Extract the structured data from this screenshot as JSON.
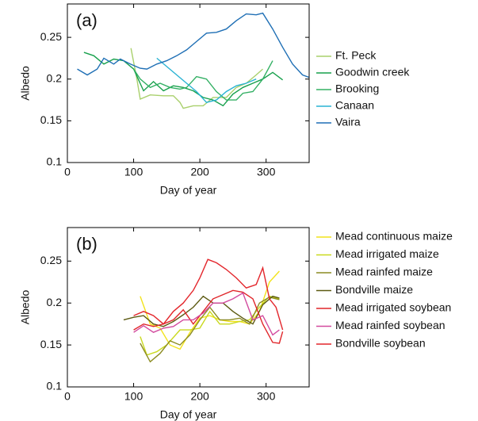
{
  "chart_data": [
    {
      "type": "line",
      "annotation": "(a)",
      "x_label": "Day of year",
      "y_label": "Albedo",
      "xlim": [
        0,
        365
      ],
      "ylim": [
        0.1,
        0.29
      ],
      "xticks": [
        0,
        100,
        200,
        300
      ],
      "yticks": [
        0.1,
        0.15,
        0.2,
        0.25
      ],
      "legend": "outside-right",
      "series": [
        {
          "name": "Ft. Peck",
          "color": "#a9d06c",
          "x": [
            96,
            105,
            110,
            125,
            145,
            160,
            170,
            175,
            190,
            205,
            220,
            240,
            255,
            270,
            285,
            295
          ],
          "values": [
            0.237,
            0.2,
            0.176,
            0.181,
            0.18,
            0.18,
            0.172,
            0.165,
            0.168,
            0.168,
            0.178,
            0.178,
            0.19,
            0.195,
            0.205,
            0.212
          ]
        },
        {
          "name": "Goodwin creek",
          "color": "#17a04c",
          "x": [
            25,
            40,
            55,
            70,
            85,
            100,
            115,
            130,
            145,
            160,
            175,
            190,
            205,
            220,
            235,
            250,
            265,
            280,
            295,
            310,
            325
          ],
          "values": [
            0.232,
            0.228,
            0.218,
            0.224,
            0.222,
            0.212,
            0.186,
            0.197,
            0.186,
            0.192,
            0.19,
            0.186,
            0.178,
            0.175,
            0.168,
            0.182,
            0.19,
            0.195,
            0.2,
            0.208,
            0.199
          ]
        },
        {
          "name": "Brooking",
          "color": "#33b064",
          "x": [
            100,
            110,
            125,
            140,
            155,
            170,
            180,
            195,
            210,
            225,
            240,
            255,
            265,
            280,
            295,
            310
          ],
          "values": [
            0.212,
            0.2,
            0.19,
            0.195,
            0.19,
            0.188,
            0.19,
            0.203,
            0.2,
            0.185,
            0.175,
            0.175,
            0.183,
            0.185,
            0.2,
            0.222
          ]
        },
        {
          "name": "Canaan",
          "color": "#2ab3d3",
          "x": [
            135,
            150,
            165,
            180,
            195,
            210,
            225,
            240,
            255,
            270,
            285
          ],
          "values": [
            0.225,
            0.215,
            0.205,
            0.195,
            0.185,
            0.172,
            0.175,
            0.185,
            0.192,
            0.195,
            0.2
          ]
        },
        {
          "name": "Vaira",
          "color": "#1f6fb5",
          "x": [
            15,
            30,
            45,
            55,
            70,
            80,
            95,
            110,
            120,
            135,
            150,
            165,
            180,
            195,
            210,
            225,
            240,
            255,
            270,
            285,
            295,
            310,
            325,
            340,
            355,
            365
          ],
          "values": [
            0.212,
            0.205,
            0.212,
            0.225,
            0.218,
            0.224,
            0.218,
            0.213,
            0.212,
            0.218,
            0.222,
            0.228,
            0.235,
            0.245,
            0.255,
            0.256,
            0.26,
            0.27,
            0.278,
            0.277,
            0.279,
            0.26,
            0.238,
            0.218,
            0.205,
            0.202
          ]
        }
      ]
    },
    {
      "type": "line",
      "annotation": "(b)",
      "x_label": "Day of year",
      "y_label": "Albedo",
      "xlim": [
        0,
        365
      ],
      "ylim": [
        0.1,
        0.29
      ],
      "xticks": [
        0,
        100,
        200,
        300
      ],
      "yticks": [
        0.1,
        0.15,
        0.2,
        0.25
      ],
      "legend": "outside-right",
      "series": [
        {
          "name": "Mead continuous maize",
          "color": "#f2e31c",
          "x": [
            110,
            125,
            140,
            155,
            170,
            185,
            200,
            215,
            230,
            245,
            260,
            275,
            290,
            305,
            320
          ],
          "values": [
            0.208,
            0.175,
            0.17,
            0.15,
            0.145,
            0.165,
            0.182,
            0.185,
            0.18,
            0.178,
            0.178,
            0.175,
            0.19,
            0.225,
            0.238
          ]
        },
        {
          "name": "Mead irrigated maize",
          "color": "#c9d91e",
          "x": [
            110,
            120,
            135,
            150,
            170,
            185,
            200,
            215,
            230,
            245,
            260,
            275,
            290,
            305,
            320
          ],
          "values": [
            0.16,
            0.138,
            0.142,
            0.15,
            0.168,
            0.168,
            0.17,
            0.19,
            0.175,
            0.175,
            0.178,
            0.18,
            0.195,
            0.208,
            0.205
          ]
        },
        {
          "name": "Mead rainfed maize",
          "color": "#8c8c22",
          "x": [
            110,
            125,
            140,
            155,
            170,
            185,
            200,
            215,
            230,
            245,
            260,
            275,
            290,
            305,
            320
          ],
          "values": [
            0.152,
            0.13,
            0.14,
            0.155,
            0.15,
            0.162,
            0.18,
            0.195,
            0.18,
            0.18,
            0.182,
            0.175,
            0.2,
            0.207,
            0.204
          ]
        },
        {
          "name": "Bondville maize",
          "color": "#5c5a12",
          "x": [
            85,
            100,
            115,
            130,
            145,
            160,
            175,
            190,
            205,
            220,
            235,
            250,
            265,
            280,
            295,
            310,
            320
          ],
          "values": [
            0.18,
            0.183,
            0.185,
            0.175,
            0.172,
            0.178,
            0.186,
            0.195,
            0.208,
            0.2,
            0.2,
            0.19,
            0.182,
            0.175,
            0.198,
            0.208,
            0.206
          ]
        },
        {
          "name": "Mead irrigated soybean",
          "color": "#e0262a",
          "x": [
            100,
            115,
            130,
            145,
            160,
            175,
            190,
            205,
            220,
            235,
            250,
            265,
            280,
            295,
            310,
            320,
            325
          ],
          "values": [
            0.168,
            0.175,
            0.172,
            0.175,
            0.18,
            0.192,
            0.175,
            0.19,
            0.205,
            0.21,
            0.215,
            0.213,
            0.205,
            0.175,
            0.153,
            0.152,
            0.166
          ]
        },
        {
          "name": "Mead rainfed soybean",
          "color": "#d24a9e",
          "x": [
            100,
            115,
            130,
            145,
            160,
            175,
            190,
            205,
            220,
            235,
            250,
            265,
            280,
            295,
            310,
            320
          ],
          "values": [
            0.165,
            0.173,
            0.165,
            0.17,
            0.172,
            0.18,
            0.18,
            0.188,
            0.2,
            0.2,
            0.205,
            0.212,
            0.18,
            0.185,
            0.162,
            0.168
          ]
        },
        {
          "name": "Bondville soybean",
          "color": "#e3262c",
          "x": [
            100,
            115,
            130,
            145,
            160,
            175,
            190,
            200,
            212,
            225,
            240,
            255,
            270,
            285,
            295,
            305,
            315,
            325
          ],
          "values": [
            0.185,
            0.19,
            0.185,
            0.175,
            0.19,
            0.2,
            0.215,
            0.23,
            0.252,
            0.248,
            0.24,
            0.23,
            0.218,
            0.222,
            0.242,
            0.205,
            0.195,
            0.168
          ]
        }
      ]
    }
  ]
}
